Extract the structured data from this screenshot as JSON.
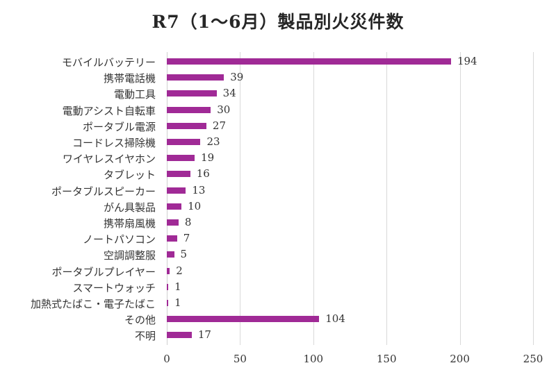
{
  "chart_data": {
    "type": "bar",
    "orientation": "horizontal",
    "title": "R7（1〜6月）製品別火災件数",
    "xlabel": "",
    "ylabel": "",
    "xlim": [
      0,
      250
    ],
    "x_ticks": [
      "0",
      "50",
      "100",
      "150",
      "200",
      "250"
    ],
    "grid": true,
    "legend": null,
    "bar_color": "#a02a96",
    "data_labels": true,
    "categories": [
      "モバイルバッテリー",
      "携帯電話機",
      "電動工具",
      "電動アシスト自転車",
      "ポータブル電源",
      "コードレス掃除機",
      "ワイヤレスイヤホン",
      "タブレット",
      "ポータブルスピーカー",
      "がん具製品",
      "携帯扇風機",
      "ノートパソコン",
      "空調調整服",
      "ポータブルプレイヤー",
      "スマートウォッチ",
      "加熱式たばこ・電子たばこ",
      "その他",
      "不明"
    ],
    "values": [
      194,
      39,
      34,
      30,
      27,
      23,
      19,
      16,
      13,
      10,
      8,
      7,
      5,
      2,
      1,
      1,
      104,
      17
    ]
  }
}
